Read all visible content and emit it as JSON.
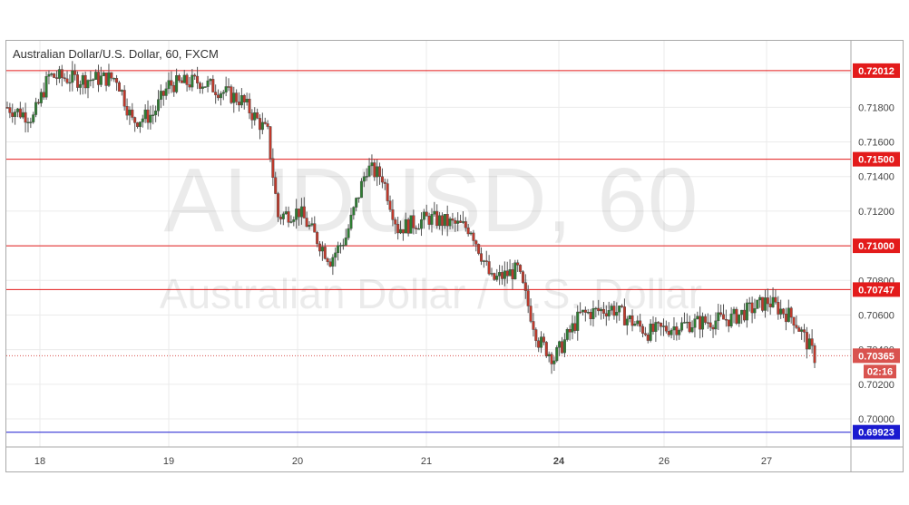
{
  "chart_title": "Australian Dollar/U.S. Dollar, 60, FXCM",
  "watermark": {
    "symbol": "AUDUSD, 60",
    "name": "Australian Dollar / U.S. Dollar"
  },
  "colors": {
    "up": "#2e7d32",
    "down": "#c0392b",
    "level": "#e31b1b",
    "support_level": "#1a1ad0",
    "grid": "#ebebeb",
    "price_label": "#d9534f"
  },
  "chart_data": {
    "type": "candlestick",
    "title": "Australian Dollar/U.S. Dollar, 60, FXCM",
    "ylim": [
      0.6984,
      0.7226
    ],
    "y_ticks": [
      "0.70000",
      "0.70200",
      "0.70400",
      "0.70600",
      "0.70800",
      "0.71200",
      "0.71400",
      "0.71600",
      "0.71800"
    ],
    "x_ticks": [
      "18",
      "19",
      "20",
      "21",
      "24",
      "26",
      "27"
    ],
    "x_ticks_bold": [
      "24"
    ],
    "horizontal_levels": [
      {
        "value": 0.72012,
        "label": "0.72012",
        "kind": "resistance"
      },
      {
        "value": 0.715,
        "label": "0.71500",
        "kind": "resistance"
      },
      {
        "value": 0.71,
        "label": "0.71000",
        "kind": "resistance"
      },
      {
        "value": 0.70747,
        "label": "0.70747",
        "kind": "resistance"
      },
      {
        "value": 0.69923,
        "label": "0.69923",
        "kind": "support"
      }
    ],
    "last_price": {
      "value": 0.70365,
      "label": "0.70365",
      "countdown": "02:16"
    },
    "trend_anchors": [
      {
        "x": 0,
        "c": 0.718
      },
      {
        "x": 10,
        "c": 0.7174
      },
      {
        "x": 16,
        "c": 0.7198
      },
      {
        "x": 28,
        "c": 0.7196
      },
      {
        "x": 42,
        "c": 0.7197
      },
      {
        "x": 48,
        "c": 0.7172
      },
      {
        "x": 56,
        "c": 0.7176
      },
      {
        "x": 62,
        "c": 0.7193
      },
      {
        "x": 74,
        "c": 0.7195
      },
      {
        "x": 90,
        "c": 0.7184
      },
      {
        "x": 100,
        "c": 0.7165
      },
      {
        "x": 104,
        "c": 0.7117
      },
      {
        "x": 112,
        "c": 0.712
      },
      {
        "x": 124,
        "c": 0.7092
      },
      {
        "x": 130,
        "c": 0.7105
      },
      {
        "x": 138,
        "c": 0.7145
      },
      {
        "x": 144,
        "c": 0.714
      },
      {
        "x": 150,
        "c": 0.711
      },
      {
        "x": 162,
        "c": 0.7116
      },
      {
        "x": 178,
        "c": 0.711
      },
      {
        "x": 186,
        "c": 0.708
      },
      {
        "x": 196,
        "c": 0.7086
      },
      {
        "x": 204,
        "c": 0.7045
      },
      {
        "x": 210,
        "c": 0.7035
      },
      {
        "x": 220,
        "c": 0.706
      },
      {
        "x": 232,
        "c": 0.7064
      },
      {
        "x": 246,
        "c": 0.705
      },
      {
        "x": 262,
        "c": 0.7055
      },
      {
        "x": 278,
        "c": 0.7058
      },
      {
        "x": 292,
        "c": 0.7068
      },
      {
        "x": 302,
        "c": 0.7058
      },
      {
        "x": 310,
        "c": 0.7036
      }
    ],
    "candle_count": 311,
    "grid": true,
    "price_axis": "right",
    "grid_rows_values": [
      0.7,
      0.702,
      0.704,
      0.706,
      0.708,
      0.71,
      0.712,
      0.714,
      0.716,
      0.718,
      0.72,
      0.722
    ]
  }
}
